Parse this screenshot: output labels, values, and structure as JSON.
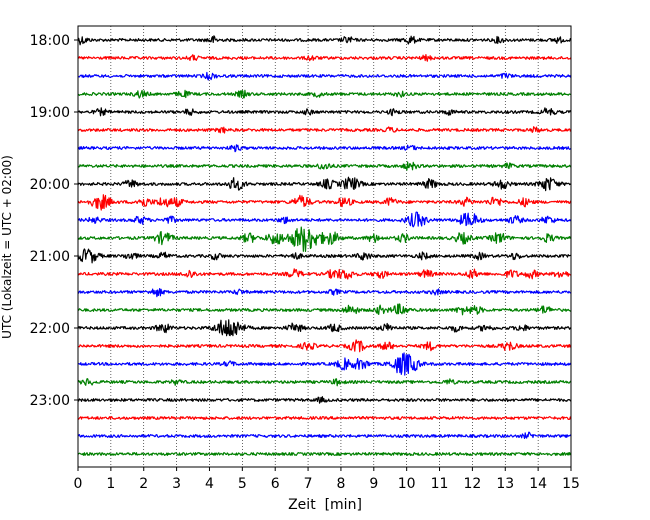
{
  "chart_data": {
    "type": "line",
    "chart_kind": "helicorder",
    "xlabel": "Zeit  [min]",
    "ylabel": "UTC (Lokalzeit = UTC + 02:00)",
    "xlim": [
      0,
      15
    ],
    "x_ticks": [
      "0",
      "1",
      "2",
      "3",
      "4",
      "5",
      "6",
      "7",
      "8",
      "9",
      "10",
      "11",
      "12",
      "13",
      "14",
      "15"
    ],
    "y_ticks": [
      "18:00",
      "19:00",
      "20:00",
      "21:00",
      "22:00",
      "23:00"
    ],
    "y_tick_trace_index": [
      0,
      4,
      8,
      12,
      16,
      20
    ],
    "trace_minutes": 15,
    "trace_count": 24,
    "grid": "vertical dotted at each minute",
    "color_cycle": [
      "#000000",
      "#ff0000",
      "#0000ff",
      "#008000"
    ],
    "traces": [
      {
        "start": "18:00",
        "bursts": [
          [
            0.1,
            0.5
          ],
          [
            4.1,
            0.45
          ],
          [
            8.2,
            0.4
          ],
          [
            10.1,
            0.5
          ],
          [
            12.8,
            0.35
          ],
          [
            14.6,
            0.35
          ]
        ]
      },
      {
        "start": "18:15",
        "bursts": [
          [
            3.5,
            0.3
          ],
          [
            7.1,
            0.3
          ],
          [
            10.6,
            0.3
          ]
        ]
      },
      {
        "start": "18:30",
        "bursts": [
          [
            4.0,
            0.4
          ],
          [
            13.0,
            0.3
          ]
        ]
      },
      {
        "start": "18:45",
        "bursts": [
          [
            1.9,
            0.45
          ],
          [
            3.2,
            0.4
          ],
          [
            5.0,
            0.4
          ],
          [
            7.3,
            0.3
          ],
          [
            9.8,
            0.3
          ]
        ]
      },
      {
        "start": "19:00",
        "bursts": [
          [
            0.7,
            0.4
          ],
          [
            3.4,
            0.35
          ],
          [
            7.0,
            0.3
          ],
          [
            9.6,
            0.35
          ],
          [
            11.3,
            0.3
          ],
          [
            14.3,
            0.5
          ]
        ]
      },
      {
        "start": "19:15",
        "bursts": [
          [
            4.4,
            0.3
          ],
          [
            9.5,
            0.3
          ],
          [
            13.9,
            0.3
          ]
        ]
      },
      {
        "start": "19:30",
        "bursts": [
          [
            4.8,
            0.35
          ],
          [
            10.1,
            0.3
          ]
        ]
      },
      {
        "start": "19:45",
        "bursts": [
          [
            7.5,
            0.45
          ],
          [
            10.1,
            0.5
          ],
          [
            13.1,
            0.3
          ]
        ]
      },
      {
        "start": "20:00",
        "bursts": [
          [
            1.6,
            0.5
          ],
          [
            4.8,
            0.8
          ],
          [
            7.6,
            0.6
          ],
          [
            8.3,
            0.9
          ],
          [
            10.7,
            0.6
          ],
          [
            12.9,
            0.6
          ],
          [
            14.3,
            0.9
          ]
        ]
      },
      {
        "start": "20:15",
        "bursts": [
          [
            0.7,
            1.0
          ],
          [
            2.0,
            0.6
          ],
          [
            2.6,
            0.6
          ],
          [
            3.0,
            0.5
          ],
          [
            6.8,
            0.8
          ],
          [
            8.1,
            0.6
          ],
          [
            9.5,
            0.5
          ],
          [
            11.8,
            0.5
          ],
          [
            12.7,
            0.6
          ],
          [
            13.6,
            0.5
          ]
        ]
      },
      {
        "start": "20:30",
        "bursts": [
          [
            0.5,
            0.4
          ],
          [
            1.9,
            0.5
          ],
          [
            2.8,
            0.4
          ],
          [
            6.3,
            0.4
          ],
          [
            10.3,
            1.0
          ],
          [
            11.9,
            1.0
          ],
          [
            13.3,
            0.5
          ],
          [
            14.3,
            0.5
          ]
        ]
      },
      {
        "start": "20:45",
        "bursts": [
          [
            2.6,
            0.8
          ],
          [
            5.2,
            0.6
          ],
          [
            6.0,
            0.8
          ],
          [
            6.9,
            1.8
          ],
          [
            7.7,
            0.8
          ],
          [
            9.0,
            0.5
          ],
          [
            9.9,
            0.5
          ],
          [
            11.7,
            0.7
          ],
          [
            12.8,
            0.7
          ],
          [
            14.3,
            0.5
          ]
        ]
      },
      {
        "start": "21:00",
        "bursts": [
          [
            0.3,
            1.0
          ],
          [
            1.6,
            0.45
          ],
          [
            2.6,
            0.4
          ],
          [
            4.2,
            0.4
          ],
          [
            6.6,
            0.4
          ],
          [
            8.7,
            0.5
          ],
          [
            10.5,
            0.4
          ],
          [
            12.2,
            0.4
          ],
          [
            13.3,
            0.4
          ]
        ]
      },
      {
        "start": "21:15",
        "bursts": [
          [
            3.4,
            0.5
          ],
          [
            6.6,
            0.55
          ],
          [
            7.8,
            0.6
          ],
          [
            8.2,
            0.6
          ],
          [
            9.2,
            0.5
          ],
          [
            10.6,
            0.5
          ],
          [
            12.0,
            0.55
          ],
          [
            13.2,
            0.5
          ],
          [
            13.8,
            0.5
          ],
          [
            14.7,
            0.5
          ]
        ]
      },
      {
        "start": "21:30",
        "bursts": [
          [
            2.4,
            0.5
          ],
          [
            4.9,
            0.3
          ],
          [
            7.8,
            0.3
          ],
          [
            10.9,
            0.3
          ]
        ]
      },
      {
        "start": "21:45",
        "bursts": [
          [
            8.3,
            0.6
          ],
          [
            9.2,
            0.5
          ],
          [
            9.8,
            0.7
          ],
          [
            11.7,
            0.5
          ],
          [
            12.1,
            0.5
          ],
          [
            14.2,
            0.5
          ]
        ]
      },
      {
        "start": "22:00",
        "bursts": [
          [
            2.6,
            0.6
          ],
          [
            4.6,
            1.5
          ],
          [
            6.6,
            0.6
          ],
          [
            7.8,
            0.5
          ],
          [
            9.4,
            0.5
          ],
          [
            11.5,
            0.4
          ],
          [
            12.4,
            0.4
          ],
          [
            13.5,
            0.4
          ]
        ]
      },
      {
        "start": "22:15",
        "bursts": [
          [
            7.0,
            0.5
          ],
          [
            8.4,
            0.5
          ],
          [
            8.6,
            0.45
          ],
          [
            9.4,
            0.5
          ],
          [
            10.7,
            0.5
          ],
          [
            13.1,
            0.6
          ]
        ]
      },
      {
        "start": "22:30",
        "bursts": [
          [
            8.1,
            0.7
          ],
          [
            8.6,
            0.7
          ],
          [
            9.8,
            1.0
          ],
          [
            10.1,
            1.0
          ],
          [
            4.6,
            0.3
          ]
        ]
      },
      {
        "start": "22:45",
        "bursts": [
          [
            0.3,
            0.4
          ],
          [
            3.0,
            0.3
          ],
          [
            7.9,
            0.35
          ],
          [
            11.3,
            0.3
          ]
        ]
      },
      {
        "start": "23:00",
        "bursts": [
          [
            7.4,
            0.3
          ]
        ]
      },
      {
        "start": "23:15",
        "bursts": []
      },
      {
        "start": "23:30",
        "bursts": [
          [
            13.7,
            0.35
          ]
        ]
      },
      {
        "start": "23:45",
        "bursts": []
      }
    ]
  }
}
